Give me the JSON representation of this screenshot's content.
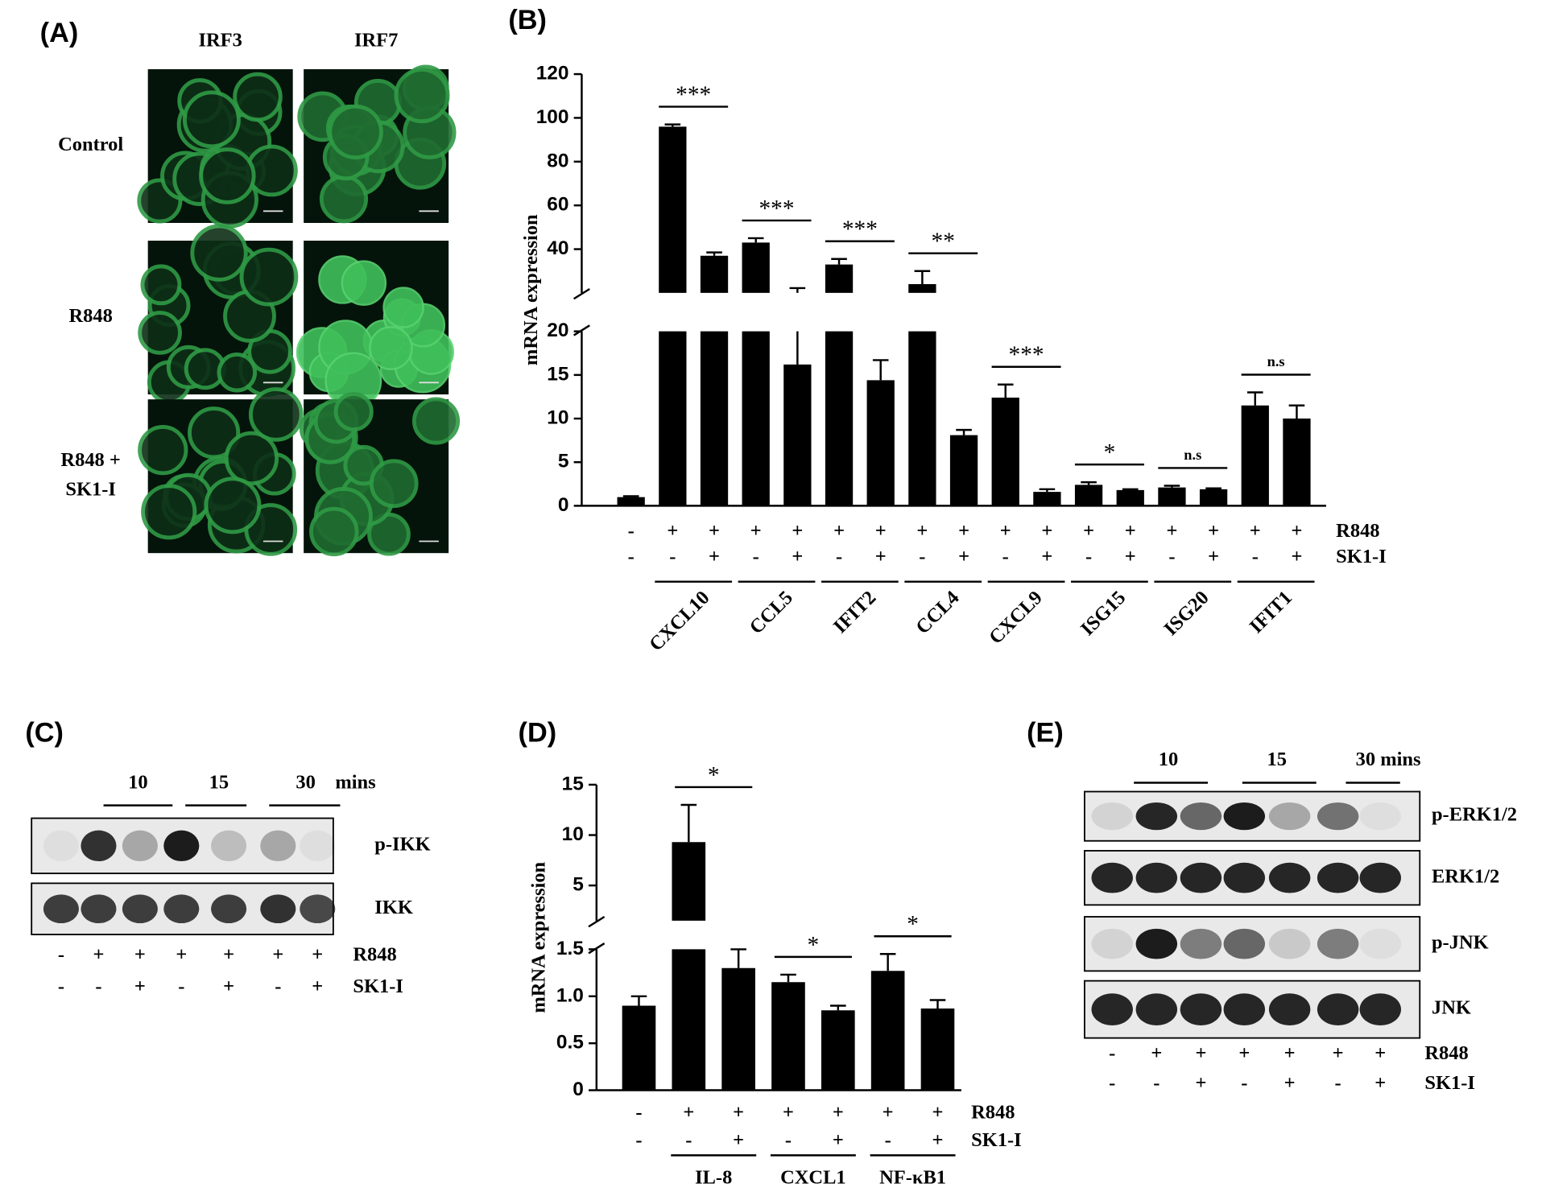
{
  "panels": {
    "A": {
      "label": "(A)",
      "columns": [
        "IRF3",
        "IRF7"
      ],
      "rows": [
        [
          "Control"
        ],
        [
          "R848"
        ],
        [
          "R848 +",
          "SK1-I"
        ]
      ]
    },
    "C": {
      "label": "(C)",
      "timepoints": [
        "10",
        "15",
        "30"
      ],
      "time_unit": "mins",
      "blots": [
        "p-IKK",
        "IKK"
      ],
      "conditions": [
        {
          "name": "R848",
          "signs": [
            "-",
            "+",
            "+",
            "+",
            "+",
            "+",
            "+"
          ]
        },
        {
          "name": "SK1-I",
          "signs": [
            "-",
            "-",
            "+",
            "-",
            "+",
            "-",
            "+"
          ]
        }
      ]
    },
    "E": {
      "label": "(E)",
      "timepoints": [
        "10",
        "15",
        "30 mins"
      ],
      "blots": [
        "p-ERK1/2",
        "ERK1/2",
        "p-JNK",
        "JNK"
      ],
      "conditions": [
        {
          "name": "R848",
          "signs": [
            "-",
            "+",
            "+",
            "+",
            "+",
            "+",
            "+"
          ]
        },
        {
          "name": "SK1-I",
          "signs": [
            "-",
            "-",
            "+",
            "-",
            "+",
            "-",
            "+"
          ]
        }
      ]
    }
  },
  "chart_data": [
    {
      "type": "bar",
      "label": "(B)",
      "y_label": "mRNA expression",
      "color": "#000000",
      "axis_segments": [
        {
          "ylim": [
            0,
            20
          ],
          "yticks": [
            0,
            5,
            10,
            15,
            20
          ]
        },
        {
          "ylim": [
            20,
            120
          ],
          "yticks": [
            40,
            60,
            80,
            100,
            120
          ]
        }
      ],
      "values": [
        1.0,
        96,
        37,
        43,
        16.2,
        33,
        14.4,
        24,
        8.1,
        12.4,
        1.6,
        2.4,
        1.8,
        2.1,
        1.9,
        11.5,
        10
      ],
      "errors": [
        0.1,
        1,
        1.5,
        2,
        6,
        2.5,
        2.3,
        6,
        0.6,
        1.5,
        0.3,
        0.3,
        0.1,
        0.2,
        0.1,
        1.5,
        1.5
      ],
      "conditions": [
        {
          "name": "R848",
          "signs": [
            "-",
            "+",
            "+",
            "+",
            "+",
            "+",
            "+",
            "+",
            "+",
            "+",
            "+",
            "+",
            "+",
            "+",
            "+",
            "+",
            "+"
          ]
        },
        {
          "name": "SK1-I",
          "signs": [
            "-",
            "-",
            "+",
            "-",
            "+",
            "-",
            "+",
            "-",
            "+",
            "-",
            "+",
            "-",
            "+",
            "-",
            "+",
            "-",
            "+"
          ]
        }
      ],
      "groups": [
        {
          "name": "CXCL10",
          "significance": "***"
        },
        {
          "name": "CCL5",
          "significance": "***"
        },
        {
          "name": "IFIT2",
          "significance": "***"
        },
        {
          "name": "CCL4",
          "significance": "**"
        },
        {
          "name": "CXCL9",
          "significance": "***"
        },
        {
          "name": "ISG15",
          "significance": "*"
        },
        {
          "name": "ISG20",
          "significance": "n.s"
        },
        {
          "name": "IFIT1",
          "significance": "n.s"
        }
      ]
    },
    {
      "type": "bar",
      "label": "(D)",
      "y_label": "mRNA expression",
      "color": "#000000",
      "axis_segments": [
        {
          "ylim": [
            0,
            1.5
          ],
          "yticks": [
            0,
            0.5,
            {
              "value": 1,
              "label": "1.0"
            },
            1.5
          ]
        },
        {
          "ylim": [
            1.5,
            15
          ],
          "yticks": [
            5,
            10,
            15
          ]
        }
      ],
      "values": [
        0.9,
        9.3,
        1.3,
        1.15,
        0.85,
        1.27,
        0.87
      ],
      "errors": [
        0.1,
        3.7,
        0.2,
        0.08,
        0.05,
        0.18,
        0.09
      ],
      "conditions": [
        {
          "name": "R848",
          "signs": [
            "-",
            "+",
            "+",
            "+",
            "+",
            "+",
            "+"
          ]
        },
        {
          "name": "SK1-I",
          "signs": [
            "-",
            "-",
            "+",
            "-",
            "+",
            "-",
            "+"
          ]
        }
      ],
      "groups": [
        {
          "name": "IL-8",
          "significance": "*"
        },
        {
          "name": "CXCL1",
          "significance": "*"
        },
        {
          "name": "NF-κB1",
          "significance": "*"
        }
      ]
    }
  ]
}
